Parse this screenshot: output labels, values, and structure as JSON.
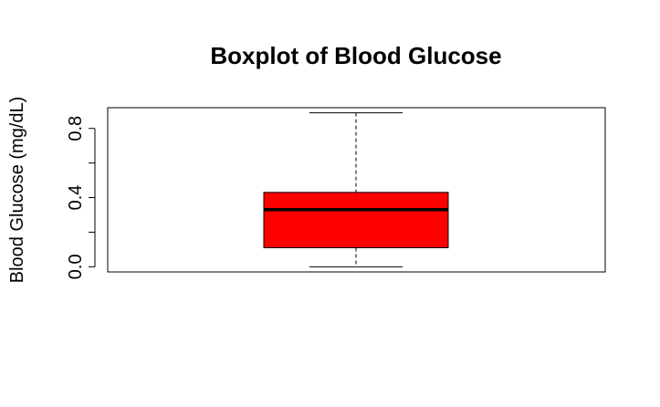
{
  "chart_data": {
    "type": "boxplot",
    "title": "Boxplot of Blood Glucose",
    "xlabel": "",
    "ylabel": "Blood Glucose (mg/dL)",
    "ylim": [
      -0.03,
      0.92
    ],
    "y_ticks": [
      0.0,
      0.2,
      0.4,
      0.6,
      0.8
    ],
    "y_tick_labels": [
      "0.0",
      "",
      "0.4",
      "",
      "0.8"
    ],
    "box": {
      "min": 0.0,
      "q1": 0.11,
      "median": 0.33,
      "q3": 0.43,
      "max": 0.89
    },
    "colors": {
      "box_fill": "#ff0000",
      "box_stroke": "#000000",
      "median_line": "#000000",
      "whisker": "#000000",
      "frame": "#000000"
    },
    "grid": false,
    "legend": "none"
  }
}
